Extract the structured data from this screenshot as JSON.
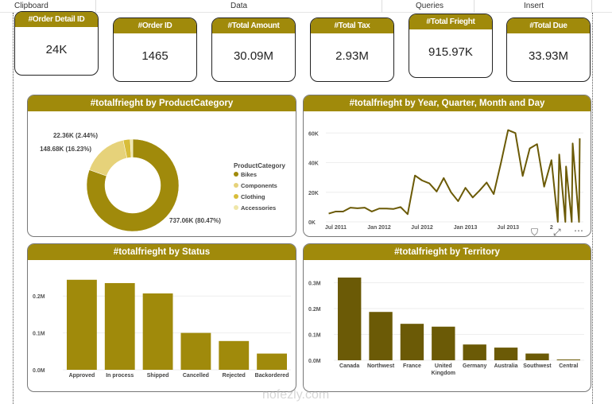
{
  "ribbon": {
    "groups": [
      "Clipboard",
      "Data",
      "Queries",
      "Insert"
    ]
  },
  "kpis": [
    {
      "title": "#Order Detail ID",
      "value": "24K"
    },
    {
      "title": "#Order ID",
      "value": "1465"
    },
    {
      "title": "#Total Amount",
      "value": "30.09M"
    },
    {
      "title": "#Total Tax",
      "value": "2.93M"
    },
    {
      "title": "#Total Frieght",
      "value": "915.97K"
    },
    {
      "title": "#Total Due",
      "value": "33.93M"
    }
  ],
  "colors": {
    "accent": "#a08a0b",
    "territory_bar": "#6b5a06",
    "line": "#6b5a06"
  },
  "watermark": "nofezly.com",
  "chart_data": [
    {
      "type": "pie",
      "title": "#totalfrieght by ProductCategory",
      "legend_title": "ProductCategory",
      "legend_position": "right",
      "categories": [
        "Bikes",
        "Components",
        "Clothing",
        "Accessories"
      ],
      "values": [
        737.06,
        148.68,
        22.36,
        8.0
      ],
      "labels": [
        "737.06K (80.47%)",
        "148.68K (16.23%)",
        "22.36K (2.44%)",
        ""
      ],
      "colors": [
        "#a08a0b",
        "#e6d27a",
        "#d8bd3a",
        "#efe6a8"
      ]
    },
    {
      "type": "line",
      "title": "#totalfrieght by Year, Quarter, Month and Day",
      "x_ticks": [
        "Jul 2011",
        "Jan 2012",
        "Jul 2012",
        "Jan 2013",
        "Jul 2013",
        "2"
      ],
      "y_ticks": [
        "0K",
        "20K",
        "40K",
        "60K"
      ],
      "ylim": [
        0,
        65000
      ],
      "grid": true,
      "x": [
        "2011-06-01",
        "2011-07-01",
        "2011-08-01",
        "2011-09-01",
        "2011-10-01",
        "2011-11-01",
        "2011-12-01",
        "2012-01-01",
        "2012-02-01",
        "2012-03-01",
        "2012-04-01",
        "2012-05-01",
        "2012-06-01",
        "2012-07-01",
        "2012-08-01",
        "2012-09-01",
        "2012-10-01",
        "2012-11-01",
        "2012-12-01",
        "2013-01-01",
        "2013-02-01",
        "2013-03-01",
        "2013-04-01",
        "2013-05-01",
        "2013-06-01",
        "2013-07-01",
        "2013-08-01",
        "2013-09-01",
        "2013-10-01",
        "2013-11-01",
        "2013-12-01",
        "2014-01-01",
        "2014-01-28",
        "2014-02-03",
        "2014-03-01",
        "2014-03-04",
        "2014-03-28",
        "2014-04-01",
        "2014-04-28",
        "2014-05-01"
      ],
      "y": [
        5600,
        7000,
        7000,
        9600,
        9200,
        9600,
        7000,
        9000,
        9000,
        8700,
        10000,
        5200,
        31300,
        28000,
        26000,
        20500,
        29600,
        20000,
        14000,
        23000,
        16500,
        21000,
        26600,
        18800,
        40000,
        62000,
        60000,
        31000,
        49600,
        52500,
        23800,
        41700,
        0,
        45500,
        0,
        37400,
        0,
        53000,
        0,
        56500
      ]
    },
    {
      "type": "bar",
      "title": "#totalfrieght by Status",
      "categories": [
        "Approved",
        "In process",
        "Shipped",
        "Cancelled",
        "Rejected",
        "Backordered"
      ],
      "values": [
        0.244,
        0.235,
        0.207,
        0.1,
        0.078,
        0.044
      ],
      "y_ticks": [
        "0.0M",
        "0.1M",
        "0.2M"
      ],
      "ylim": [
        0,
        0.25
      ],
      "unit": "M",
      "grid": true
    },
    {
      "type": "bar",
      "title": "#totalfrieght by Territory",
      "categories": [
        "Canada",
        "Northwest",
        "France",
        "United Kingdom",
        "Germany",
        "Australia",
        "Southwest",
        "Central"
      ],
      "values": [
        0.32,
        0.187,
        0.141,
        0.13,
        0.061,
        0.049,
        0.026,
        0.003
      ],
      "y_ticks": [
        "0.0M",
        "0.1M",
        "0.2M",
        "0.3M"
      ],
      "ylim": [
        0,
        0.32
      ],
      "unit": "M",
      "grid": true
    }
  ]
}
